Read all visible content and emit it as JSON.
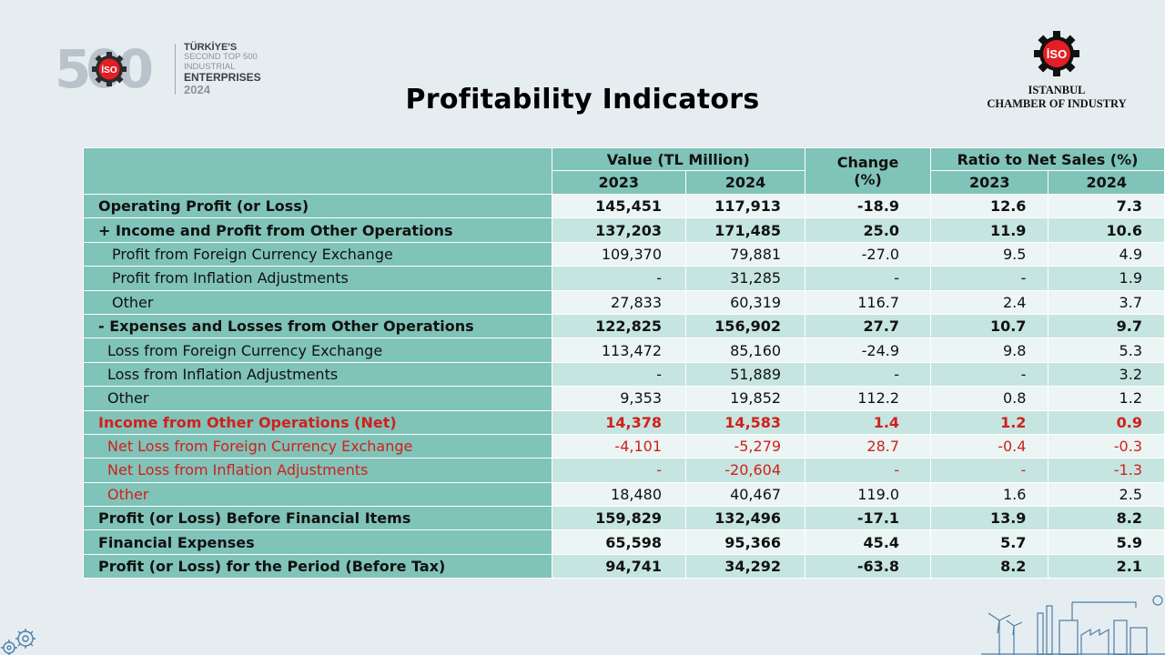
{
  "logo_left": {
    "number": "500",
    "line1": "TÜRKİYE'S",
    "line2": "SECOND TOP 500 INDUSTRIAL",
    "line3": "ENTERPRISES",
    "line4": "2024",
    "badge": "İSO"
  },
  "logo_right": {
    "badge": "İSO",
    "line1": "ISTANBUL",
    "line2": "CHAMBER OF INDUSTRY"
  },
  "title": "Profitability Indicators",
  "table": {
    "headers": {
      "value_group": "Value (TL Million)",
      "change": "Change",
      "change_unit": "(%)",
      "ratio_group": "Ratio to Net Sales (%)",
      "y2023": "2023",
      "y2024": "2024"
    },
    "rows": [
      {
        "label": "Operating Profit (or Loss)",
        "v2023": "145,451",
        "v2024": "117,913",
        "change": "-18.9",
        "r2023": "12.6",
        "r2024": "7.3"
      },
      {
        "label": "+ Income and Profit from Other Operations",
        "v2023": "137,203",
        "v2024": "171,485",
        "change": "25.0",
        "r2023": "11.9",
        "r2024": "10.6"
      },
      {
        "label": "Profit from Foreign Currency Exchange",
        "v2023": "109,370",
        "v2024": "79,881",
        "change": "-27.0",
        "r2023": "9.5",
        "r2024": "4.9"
      },
      {
        "label": "Profit from Inflation Adjustments",
        "v2023": "-",
        "v2024": "31,285",
        "change": "-",
        "r2023": "-",
        "r2024": "1.9"
      },
      {
        "label": "Other",
        "v2023": "27,833",
        "v2024": "60,319",
        "change": "116.7",
        "r2023": "2.4",
        "r2024": "3.7"
      },
      {
        "label": "- Expenses and Losses from Other Operations",
        "v2023": "122,825",
        "v2024": "156,902",
        "change": "27.7",
        "r2023": "10.7",
        "r2024": "9.7"
      },
      {
        "label": "Loss from Foreign Currency Exchange",
        "v2023": "113,472",
        "v2024": "85,160",
        "change": "-24.9",
        "r2023": "9.8",
        "r2024": "5.3"
      },
      {
        "label": "Loss from Inflation Adjustments",
        "v2023": "-",
        "v2024": "51,889",
        "change": "-",
        "r2023": "-",
        "r2024": "3.2"
      },
      {
        "label": "Other",
        "v2023": "9,353",
        "v2024": "19,852",
        "change": "112.2",
        "r2023": "0.8",
        "r2024": "1.2"
      },
      {
        "label": "Income from Other Operations (Net)",
        "v2023": "14,378",
        "v2024": "14,583",
        "change": "1.4",
        "r2023": "1.2",
        "r2024": "0.9"
      },
      {
        "label": "Net Loss from Foreign Currency Exchange",
        "v2023": "-4,101",
        "v2024": "-5,279",
        "change": "28.7",
        "r2023": "-0.4",
        "r2024": "-0.3"
      },
      {
        "label": "Net Loss from Inflation Adjustments",
        "v2023": "-",
        "v2024": "-20,604",
        "change": "-",
        "r2023": "-",
        "r2024": "-1.3"
      },
      {
        "label": "Other",
        "v2023": "18,480",
        "v2024": "40,467",
        "change": "119.0",
        "r2023": "1.6",
        "r2024": "2.5"
      },
      {
        "label": "Profit (or Loss) Before Financial Items",
        "v2023": "159,829",
        "v2024": "132,496",
        "change": "-17.1",
        "r2023": "13.9",
        "r2024": "8.2"
      },
      {
        "label": "Financial Expenses",
        "v2023": "65,598",
        "v2024": "95,366",
        "change": "45.4",
        "r2023": "5.7",
        "r2024": "5.9"
      },
      {
        "label": "Profit (or Loss) for the Period (Before Tax)",
        "v2023": "94,741",
        "v2024": "34,292",
        "change": "-63.8",
        "r2023": "8.2",
        "r2024": "2.1"
      }
    ]
  },
  "colors": {
    "header_teal": "#80c3b8",
    "row_light": "#c6e5e0",
    "row_white": "#ebf5f3",
    "highlight_red": "#d0201c",
    "iso_red": "#e31e24"
  }
}
